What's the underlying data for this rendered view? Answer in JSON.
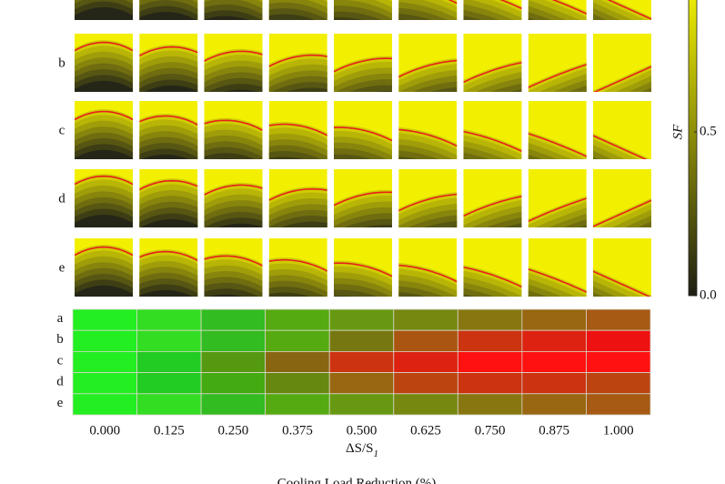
{
  "chart_data": {
    "type": "panel-heatmap",
    "panel_rows": [
      "b",
      "c",
      "d",
      "e"
    ],
    "colorbar": {
      "label": "SF",
      "clim": [
        0,
        1
      ],
      "ticks": [
        {
          "value": 0,
          "label": "0.0"
        },
        {
          "value": 0.5,
          "label": "0.5"
        }
      ],
      "colors": [
        "#1e1e12",
        "#ffff00"
      ]
    },
    "heatmap": {
      "rows": [
        "a",
        "b",
        "c",
        "d",
        "e"
      ],
      "categories": [
        "0.000",
        "0.125",
        "0.250",
        "0.375",
        "0.500",
        "0.625",
        "0.750",
        "0.875",
        "1.000"
      ],
      "cell_colors": [
        [
          "#22ee22",
          "#33dd22",
          "#33bb22",
          "#55aa11",
          "#669911",
          "#778811",
          "#887711",
          "#996611",
          "#a65a14"
        ],
        [
          "#22ee22",
          "#33dd22",
          "#33bb22",
          "#55aa11",
          "#777711",
          "#aa5511",
          "#cc3311",
          "#dd2211",
          "#ee1111"
        ],
        [
          "#22ee22",
          "#22cc22",
          "#559911",
          "#886611",
          "#cc3311",
          "#dd2211",
          "#ff1111",
          "#ff1111",
          "#ff1111"
        ],
        [
          "#22ee22",
          "#22cc22",
          "#44aa11",
          "#668811",
          "#996611",
          "#bb4411",
          "#cc3311",
          "#cc3311",
          "#bb4411"
        ],
        [
          "#22ee22",
          "#33dd22",
          "#33bb22",
          "#55aa11",
          "#669911",
          "#778811",
          "#887711",
          "#996611",
          "#a65a14"
        ]
      ],
      "x_label": "ΔS/S",
      "x_label_sub": "1",
      "bottom_label": "Cooling Load Reduction (%)"
    }
  }
}
